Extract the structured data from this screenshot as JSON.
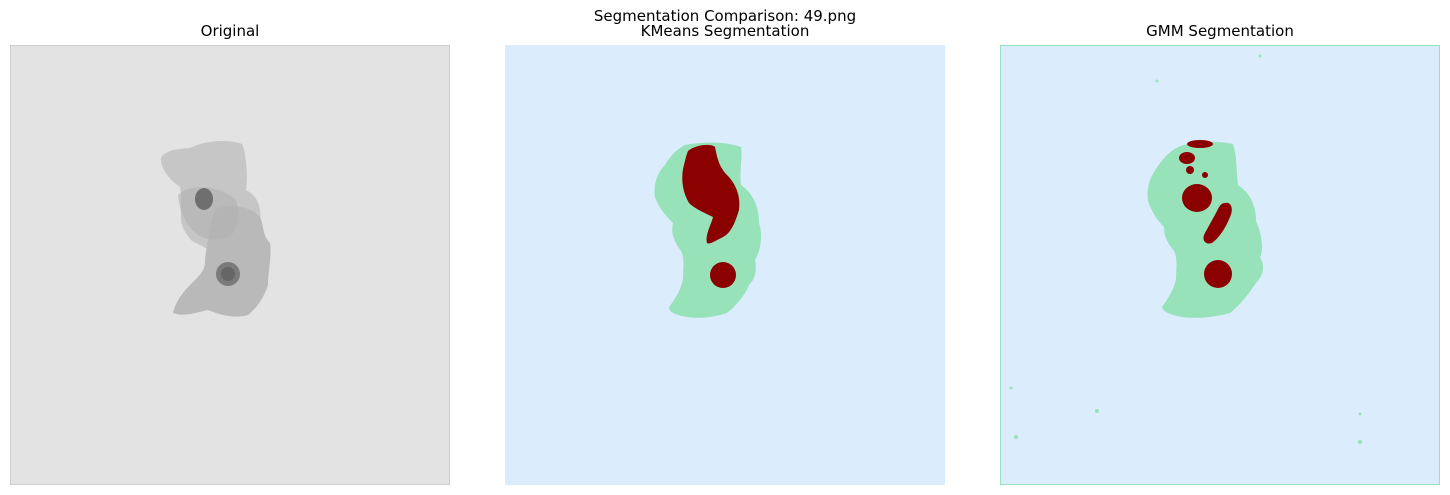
{
  "figure": {
    "suptitle": "Segmentation Comparison: 49.png"
  },
  "panels": {
    "original": {
      "title": "Original"
    },
    "kmeans": {
      "title": "KMeans Segmentation"
    },
    "gmm": {
      "title": "GMM Segmentation"
    }
  },
  "colors": {
    "background_class": "#dbedfc",
    "cytoplasm_class": "#97e2b9",
    "nucleus_class": "#8b0000",
    "original_background": "#e3e3e3",
    "cell_light": "#c6c6c6",
    "cell_mid": "#b2b2b2",
    "nucleus_dark": "#6f6f6f",
    "axes_edge": "#bdbdbd"
  }
}
